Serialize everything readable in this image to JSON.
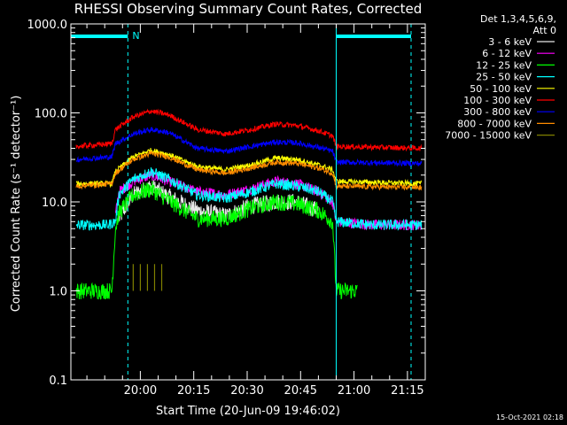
{
  "chart_data": {
    "type": "line",
    "title": "RHESSI Observing Summary Count Rates, Corrected",
    "xlabel": "Start Time (20-Jun-09 19:46:02)",
    "ylabel": "Corrected Count Rate (s⁻¹ detector⁻¹)",
    "y_scale": "log",
    "ylim": [
      0.1,
      1000
    ],
    "xlim_minutes": [
      -5.5,
      94
    ],
    "x_ticks": [
      "20:00",
      "20:15",
      "20:30",
      "20:45",
      "21:00",
      "21:15"
    ],
    "y_ticks": [
      "0.1",
      "1.0",
      "10.0",
      "100.0",
      "1000.0"
    ],
    "legend_header": [
      "Det 1,3,4,5,6,9,",
      "Att 0"
    ],
    "legend_placement": "right",
    "series": [
      {
        "name": "3 - 6 keV",
        "color": "#e8e8e8",
        "x": [
          -4,
          7,
          8,
          12,
          17,
          21,
          30,
          38,
          45,
          52,
          58,
          64,
          69,
          70,
          80
        ],
        "y": [
          null,
          null,
          6.5,
          12,
          15,
          12,
          8,
          7,
          9,
          10,
          10,
          8,
          null,
          null,
          null
        ]
      },
      {
        "name": "6 - 12 keV",
        "color": "#ff00ff",
        "x": [
          -4,
          5,
          7,
          8,
          12,
          17,
          22,
          30,
          38,
          45,
          52,
          58,
          64,
          68,
          69,
          79,
          93
        ],
        "y": [
          null,
          null,
          7,
          13,
          17,
          20,
          17,
          13,
          12,
          14,
          17,
          16,
          13,
          10,
          6,
          5.5,
          5.5
        ]
      },
      {
        "name": "12 - 25 keV",
        "color": "#00ff00",
        "x": [
          -4,
          6,
          7,
          8,
          12,
          17,
          21,
          30,
          38,
          45,
          52,
          58,
          64,
          68,
          69,
          75
        ],
        "y": [
          1.0,
          1.0,
          5,
          7.5,
          12,
          14,
          11,
          6.5,
          6.5,
          8.5,
          10,
          9.5,
          8,
          6,
          1.0,
          1.0
        ]
      },
      {
        "name": "25 - 50 keV",
        "color": "#00ffff",
        "x": [
          -4,
          5,
          7,
          8,
          12,
          17,
          22,
          30,
          38,
          45,
          52,
          58,
          64,
          68,
          69,
          79,
          93
        ],
        "y": [
          5.5,
          5.5,
          6,
          12,
          18,
          22,
          18,
          12,
          11,
          13,
          16,
          15,
          13,
          10,
          6,
          5.5,
          5.5
        ]
      },
      {
        "name": "50 - 100 keV",
        "color": "#ffff00",
        "x": [
          -4,
          6,
          7,
          12,
          17,
          22,
          30,
          38,
          45,
          52,
          58,
          64,
          68,
          69,
          93
        ],
        "y": [
          16,
          16,
          22,
          32,
          38,
          34,
          25,
          23,
          26,
          31,
          30,
          26,
          23,
          17,
          16
        ]
      },
      {
        "name": "100 - 300 keV",
        "color": "#ff0000",
        "x": [
          -4,
          6,
          7,
          12,
          17,
          22,
          30,
          38,
          45,
          52,
          58,
          64,
          68,
          69,
          93
        ],
        "y": [
          42,
          45,
          65,
          90,
          105,
          95,
          65,
          58,
          65,
          75,
          72,
          63,
          55,
          42,
          40
        ]
      },
      {
        "name": "300 - 800 keV",
        "color": "#0000ff",
        "x": [
          -4,
          6,
          7,
          12,
          17,
          22,
          30,
          38,
          45,
          52,
          58,
          64,
          68,
          69,
          93
        ],
        "y": [
          30,
          32,
          45,
          58,
          65,
          60,
          40,
          37,
          42,
          47,
          46,
          41,
          37,
          28,
          27
        ]
      },
      {
        "name": "800 - 7000 keV",
        "color": "#ff8c00",
        "x": [
          -4,
          6,
          7,
          12,
          17,
          22,
          30,
          38,
          45,
          52,
          58,
          64,
          68,
          69,
          93
        ],
        "y": [
          15,
          16,
          21,
          30,
          35,
          32,
          23,
          21,
          24,
          28,
          27,
          24,
          21,
          15,
          14.5
        ]
      },
      {
        "name": "7000 - 15000 keV",
        "color": "#808000",
        "x": [
          12,
          13,
          14,
          15,
          16,
          17,
          18,
          19,
          20
        ],
        "y": [
          2.0,
          1.0,
          2.0,
          1.0,
          2.0,
          1.0,
          2.0,
          1.0,
          2.0
        ]
      }
    ],
    "markers": {
      "color": "#00ffff",
      "night_bars": [
        {
          "x0": -5.5,
          "x1": 10.5,
          "label": "N"
        },
        {
          "x0": 69,
          "x1": 94,
          "label": ""
        }
      ],
      "vertical_lines": [
        {
          "x": -5.5,
          "style": "solid"
        },
        {
          "x": 10.5,
          "style": "dashed"
        },
        {
          "x": 69,
          "style": "solid"
        },
        {
          "x": 94,
          "style": "dashed"
        }
      ]
    }
  },
  "timestamp": "15-Oct-2021 02:18"
}
